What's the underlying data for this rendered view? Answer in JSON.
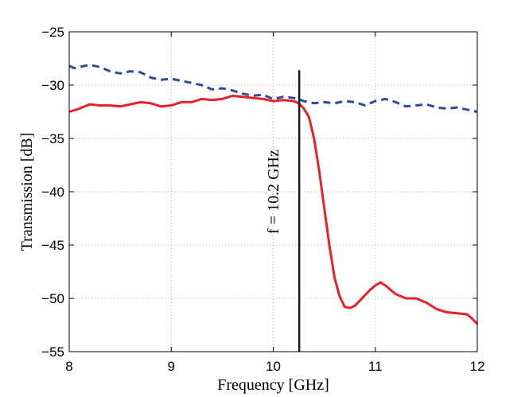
{
  "chart_data": {
    "type": "line",
    "xlabel": "Frequency [GHz]",
    "ylabel": "Transmission [dB]",
    "xlim": [
      8,
      12
    ],
    "ylim": [
      -55,
      -25
    ],
    "xticks": [
      8,
      9,
      10,
      11,
      12
    ],
    "yticks": [
      -55,
      -50,
      -45,
      -40,
      -35,
      -30,
      -25
    ],
    "grid": true,
    "series": [
      {
        "name": "dashed",
        "color": "#2e4a9a",
        "style": "dashed",
        "x": [
          8.0,
          8.05,
          8.1,
          8.2,
          8.3,
          8.4,
          8.5,
          8.6,
          8.7,
          8.8,
          8.9,
          9.0,
          9.1,
          9.2,
          9.3,
          9.4,
          9.5,
          9.6,
          9.7,
          9.8,
          9.9,
          10.0,
          10.1,
          10.2,
          10.3,
          10.4,
          10.5,
          10.6,
          10.7,
          10.8,
          10.9,
          11.0,
          11.1,
          11.2,
          11.3,
          11.4,
          11.5,
          11.6,
          11.7,
          11.8,
          11.9,
          12.0
        ],
        "y": [
          -28.2,
          -28.4,
          -28.3,
          -28.1,
          -28.3,
          -28.7,
          -28.9,
          -28.7,
          -28.8,
          -29.3,
          -29.5,
          -29.4,
          -29.6,
          -29.8,
          -30.0,
          -30.4,
          -30.3,
          -30.5,
          -30.8,
          -31.0,
          -30.9,
          -31.3,
          -31.1,
          -31.2,
          -31.5,
          -31.7,
          -31.6,
          -31.7,
          -31.5,
          -31.6,
          -31.9,
          -31.5,
          -31.3,
          -31.6,
          -32.0,
          -31.9,
          -31.8,
          -32.1,
          -32.2,
          -32.1,
          -32.3,
          -32.5
        ]
      },
      {
        "name": "solid",
        "color": "#e8202a",
        "style": "solid",
        "x": [
          8.0,
          8.1,
          8.2,
          8.3,
          8.4,
          8.5,
          8.6,
          8.7,
          8.8,
          8.9,
          9.0,
          9.1,
          9.2,
          9.3,
          9.4,
          9.5,
          9.6,
          9.7,
          9.8,
          9.9,
          10.0,
          10.1,
          10.2,
          10.25,
          10.3,
          10.35,
          10.4,
          10.45,
          10.5,
          10.55,
          10.6,
          10.65,
          10.7,
          10.75,
          10.8,
          10.85,
          10.9,
          10.95,
          11.0,
          11.05,
          11.1,
          11.15,
          11.2,
          11.3,
          11.4,
          11.5,
          11.6,
          11.7,
          11.8,
          11.9,
          11.95,
          12.0
        ],
        "y": [
          -32.5,
          -32.2,
          -31.8,
          -31.9,
          -31.9,
          -32.0,
          -31.8,
          -31.6,
          -31.7,
          -32.0,
          -31.9,
          -31.6,
          -31.6,
          -31.3,
          -31.4,
          -31.3,
          -31.0,
          -31.1,
          -31.2,
          -31.3,
          -31.5,
          -31.4,
          -31.5,
          -31.7,
          -32.2,
          -33.0,
          -35.0,
          -38.0,
          -41.5,
          -45.0,
          -48.0,
          -49.8,
          -50.8,
          -50.9,
          -50.7,
          -50.2,
          -49.7,
          -49.2,
          -48.8,
          -48.5,
          -48.8,
          -49.2,
          -49.6,
          -50.0,
          -50.0,
          -50.4,
          -51.0,
          -51.3,
          -51.4,
          -51.5,
          -51.9,
          -52.4
        ]
      }
    ],
    "annotations": [
      {
        "type": "vline",
        "x": 10.2,
        "y_from": -55,
        "y_to": -28.6,
        "color": "#1a1a1a"
      }
    ],
    "annotation_text": "f = 10.2 GHz"
  }
}
